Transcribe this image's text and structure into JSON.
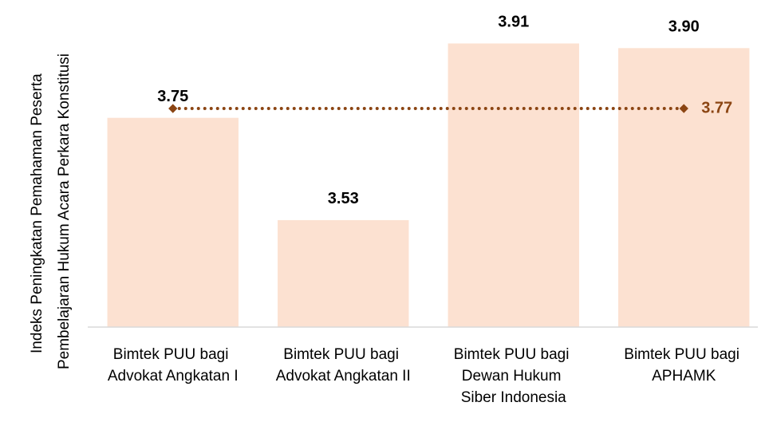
{
  "chart_data": {
    "type": "bar",
    "y_label": "Indeks Peningkatan Pemahaman Peserta Pembelajaran Hukum Acara Perkara Konstitusi",
    "categories": [
      "Bimtek PUU bagi Advokat Angkatan I",
      "Bimtek PUU bagi Advokat Angkatan II",
      "Bimtek PUU bagi Dewan Hukum Siber Indonesia",
      "Bimtek PUU bagi APHAMK"
    ],
    "values": [
      3.75,
      3.53,
      3.91,
      3.9
    ],
    "value_labels": [
      "3.75",
      "3.53",
      "3.91",
      "3.90"
    ],
    "color": "#fce1d1",
    "ylim": [
      3.3,
      4.0
    ],
    "average": {
      "value": 3.77,
      "color": "#8b4513"
    }
  }
}
